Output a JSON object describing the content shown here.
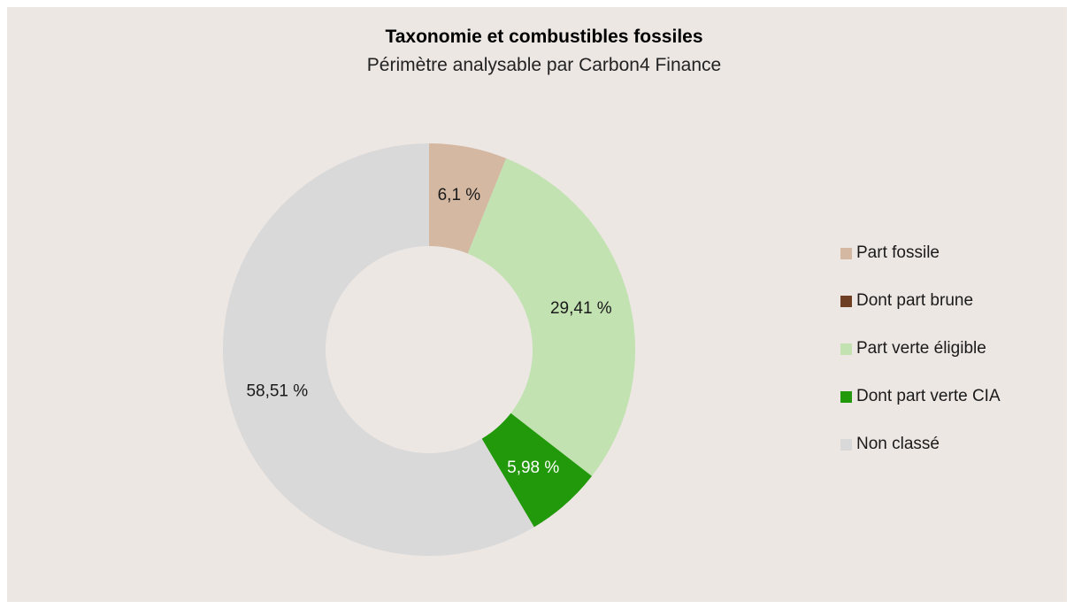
{
  "chart_data": {
    "type": "pie",
    "variant": "donut",
    "title": "Taxonomie et combustibles fossiles",
    "subtitle": "Périmètre analysable par Carbon4 Finance",
    "start_angle_deg": 0,
    "direction": "clockwise",
    "slices": [
      {
        "label": "Part fossile",
        "value": 6.1,
        "value_label": "6,1 %",
        "color": "#d4b8a2",
        "label_color": "#1a1a1a"
      },
      {
        "label": "Part verte éligible",
        "value": 29.41,
        "value_label": "29,41 %",
        "color": "#c2e2b2",
        "label_color": "#1a1a1a"
      },
      {
        "label": "Dont part verte CIA",
        "value": 5.98,
        "value_label": "5,98 %",
        "color": "#22990a",
        "label_color": "#ffffff"
      },
      {
        "label": "Non classé",
        "value": 58.51,
        "value_label": "58,51 %",
        "color": "#d9d9d9",
        "label_color": "#1a1a1a"
      }
    ],
    "legend_position": "right",
    "legend": [
      {
        "label": "Part fossile",
        "color": "#d4b8a2"
      },
      {
        "label": "Dont part brune",
        "color": "#6e3f23"
      },
      {
        "label": "Part verte éligible",
        "color": "#c2e2b2"
      },
      {
        "label": "Dont part verte CIA",
        "color": "#22990a"
      },
      {
        "label": "Non classé",
        "color": "#d9d9d9"
      }
    ]
  }
}
